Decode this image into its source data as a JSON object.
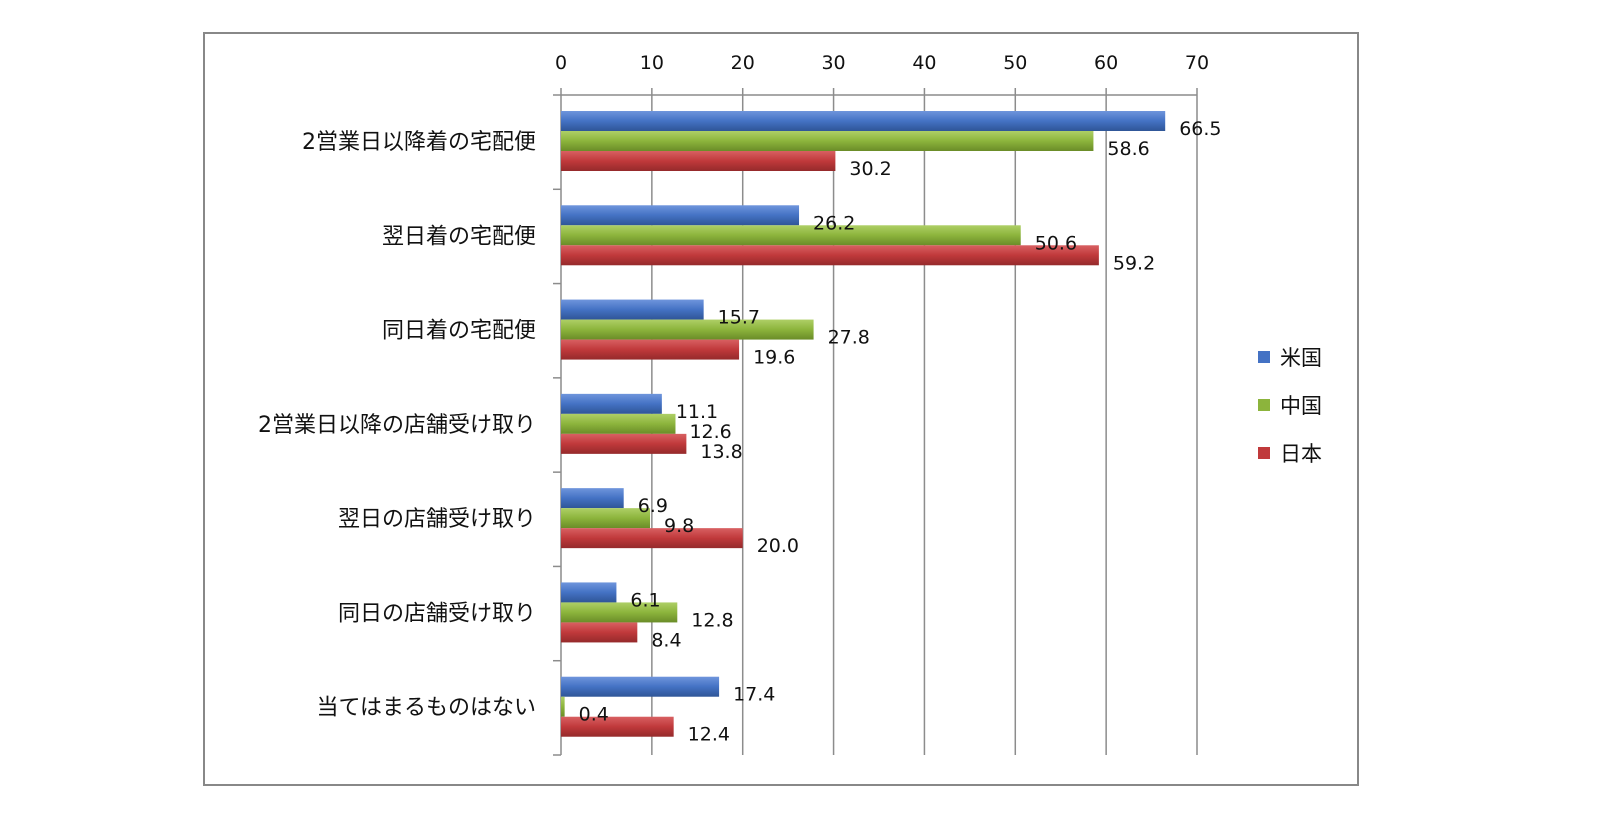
{
  "chart_data": {
    "type": "bar",
    "orientation": "horizontal",
    "categories": [
      "2営業日以降着の宅配便",
      "翌日着の宅配便",
      "同日着の宅配便",
      "2営業日以降の店舗受け取り",
      "翌日の店舗受け取り",
      "同日の店舗受け取り",
      "当てはまるものはない"
    ],
    "series": [
      {
        "name": "米国",
        "color": "#4472c4",
        "values": [
          66.5,
          26.2,
          15.7,
          11.1,
          6.9,
          6.1,
          17.4
        ]
      },
      {
        "name": "中国",
        "color": "#8cb43c",
        "values": [
          58.6,
          50.6,
          27.8,
          12.6,
          9.8,
          12.8,
          0.4
        ]
      },
      {
        "name": "日本",
        "color": "#c0393b",
        "values": [
          30.2,
          59.2,
          19.6,
          13.8,
          20.0,
          8.4,
          12.4
        ]
      }
    ],
    "xlim": [
      0,
      70
    ],
    "xticks": [
      0,
      10,
      20,
      30,
      40,
      50,
      60,
      70
    ],
    "x_axis_position": "top",
    "grid": "vertical",
    "legend": "right",
    "title": "",
    "xlabel": "",
    "ylabel": ""
  }
}
